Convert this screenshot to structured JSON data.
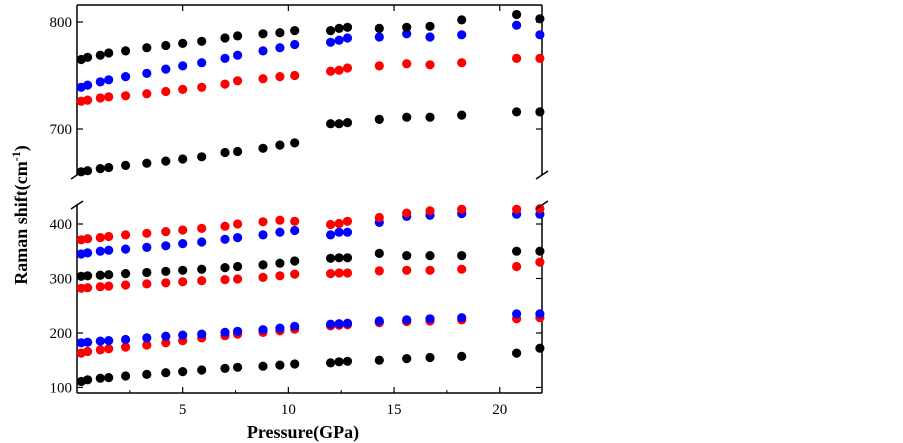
{
  "chart_data": {
    "type": "scatter",
    "title": "",
    "xlabel": "Pressure(GPa)",
    "ylabel_main": "Raman shift(cm",
    "ylabel_sup": "-1",
    "ylabel_close": ")",
    "xlim": [
      0,
      22
    ],
    "x_ticks": [
      5,
      10,
      15,
      20
    ],
    "y_axis_break": true,
    "y_lower_range": [
      100,
      430
    ],
    "y_upper_range": [
      650,
      810
    ],
    "y_ticks_lower": [
      100,
      200,
      300,
      400
    ],
    "y_ticks_upper": [
      700,
      800
    ],
    "grid": false,
    "legend": "none",
    "colors": {
      "black": "#000000",
      "blue": "#0000ff",
      "red": "#ff0000"
    },
    "series": [
      {
        "color": "black",
        "x": [
          0.2,
          0.5,
          1.1,
          1.5,
          2.3,
          3.3,
          4.2,
          5.0,
          5.9,
          7.0,
          7.6,
          8.8,
          9.6,
          10.3,
          12.0,
          12.4,
          12.8,
          14.3,
          15.6,
          16.7,
          18.2,
          20.8,
          21.9
        ],
        "y": [
          660,
          661,
          663,
          664,
          666,
          668,
          670,
          672,
          674,
          678,
          679,
          682,
          685,
          687,
          705,
          705,
          706,
          709,
          711,
          711,
          713,
          716,
          716
        ]
      },
      {
        "color": "red",
        "x": [
          0.2,
          0.5,
          1.1,
          1.5,
          2.3,
          3.3,
          4.2,
          5.0,
          5.9,
          7.0,
          7.6,
          8.8,
          9.6,
          10.3,
          12.0,
          12.4,
          12.8,
          14.3,
          15.6,
          16.7,
          18.2,
          20.8,
          21.9
        ],
        "y": [
          726,
          727,
          729,
          730,
          731,
          733,
          735,
          737,
          739,
          742,
          745,
          747,
          749,
          750,
          754,
          755,
          757,
          759,
          761,
          760,
          762,
          766,
          766
        ]
      },
      {
        "color": "blue",
        "x": [
          0.2,
          0.5,
          1.1,
          1.5,
          2.3,
          3.3,
          4.2,
          5.0,
          5.9,
          7.0,
          7.6,
          8.8,
          9.6,
          10.3,
          12.0,
          12.4,
          12.8,
          14.3,
          15.6,
          16.7,
          18.2,
          20.8,
          21.9
        ],
        "y": [
          739,
          741,
          744,
          746,
          749,
          752,
          756,
          759,
          762,
          766,
          769,
          773,
          776,
          779,
          781,
          783,
          785,
          786,
          789,
          786,
          788,
          797,
          788
        ]
      },
      {
        "color": "black",
        "x": [
          0.2,
          0.5,
          1.1,
          1.5,
          2.3,
          3.3,
          4.2,
          5.0,
          5.9,
          7.0,
          7.6,
          8.8,
          9.6,
          10.3,
          12.0,
          12.4,
          12.8,
          14.3,
          15.6,
          16.7,
          18.2,
          20.8,
          21.9
        ],
        "y": [
          765,
          767,
          769,
          771,
          773,
          776,
          778,
          780,
          782,
          785,
          787,
          789,
          790,
          792,
          792,
          794,
          795,
          794,
          795,
          796,
          802,
          807,
          803
        ]
      },
      {
        "color": "black",
        "x": [
          0.2,
          0.5,
          1.1,
          1.5,
          2.3,
          3.3,
          4.2,
          5.0,
          5.9,
          7.0,
          7.6,
          8.8,
          9.6,
          10.3,
          12.0,
          12.4,
          12.8,
          14.3,
          15.6,
          16.7,
          18.2,
          20.8,
          21.9
        ],
        "y": [
          111,
          114,
          117,
          118,
          121,
          124,
          127,
          129,
          132,
          135,
          137,
          139,
          141,
          143,
          145,
          147,
          148,
          150,
          153,
          155,
          157,
          163,
          172
        ]
      },
      {
        "color": "red",
        "x": [
          0.2,
          0.5,
          1.1,
          1.5,
          2.3,
          3.3,
          4.2,
          5.0,
          5.9,
          7.0,
          7.6,
          8.8,
          9.6,
          10.3,
          12.0,
          12.4,
          12.8,
          14.3,
          15.6,
          16.7,
          18.2,
          20.8,
          21.9
        ],
        "y": [
          163,
          166,
          169,
          171,
          174,
          178,
          182,
          186,
          191,
          195,
          198,
          201,
          204,
          207,
          213,
          214,
          215,
          219,
          221,
          222,
          224,
          226,
          228
        ]
      },
      {
        "color": "blue",
        "x": [
          0.2,
          0.5,
          1.1,
          1.5,
          2.3,
          3.3,
          4.2,
          5.0,
          5.9,
          7.0,
          7.6,
          8.8,
          9.6,
          10.3,
          12.0,
          12.4,
          12.8,
          14.3,
          15.6,
          16.7,
          18.2,
          20.8,
          21.9
        ],
        "y": [
          182,
          183,
          185,
          186,
          188,
          191,
          194,
          196,
          198,
          201,
          203,
          206,
          209,
          212,
          216,
          217,
          218,
          222,
          224,
          226,
          228,
          235,
          235
        ]
      },
      {
        "color": "red",
        "x": [
          0.2,
          0.5,
          1.1,
          1.5,
          2.3,
          3.3,
          4.2,
          5.0,
          5.9,
          7.0,
          7.6,
          8.8,
          9.6,
          10.3,
          12.0,
          12.4,
          12.8,
          14.3,
          15.6,
          16.7,
          18.2,
          20.8,
          21.9
        ],
        "y": [
          282,
          283,
          285,
          286,
          288,
          290,
          292,
          294,
          296,
          298,
          299,
          302,
          305,
          308,
          309,
          310,
          310,
          314,
          315,
          315,
          317,
          322,
          330
        ]
      },
      {
        "color": "black",
        "x": [
          0.2,
          0.5,
          1.1,
          1.5,
          2.3,
          3.3,
          4.2,
          5.0,
          5.9,
          7.0,
          7.6,
          8.8,
          9.6,
          10.3,
          12.0,
          12.4,
          12.8,
          14.3,
          15.6,
          16.7,
          18.2,
          20.8,
          21.9
        ],
        "y": [
          304,
          305,
          306,
          307,
          309,
          311,
          313,
          315,
          317,
          320,
          322,
          325,
          328,
          332,
          337,
          338,
          338,
          346,
          342,
          342,
          342,
          350,
          350
        ]
      },
      {
        "color": "blue",
        "x": [
          0.2,
          0.5,
          1.1,
          1.5,
          2.3,
          3.3,
          4.2,
          5.0,
          5.9,
          7.0,
          7.6,
          8.8,
          9.6,
          10.3,
          12.0,
          12.4,
          12.8,
          14.3,
          15.6,
          16.7,
          18.2,
          20.8,
          21.9
        ],
        "y": [
          345,
          347,
          350,
          352,
          354,
          357,
          360,
          364,
          367,
          372,
          375,
          380,
          385,
          388,
          380,
          385,
          385,
          403,
          414,
          416,
          419,
          418,
          418
        ]
      },
      {
        "color": "red",
        "x": [
          0.2,
          0.5,
          1.1,
          1.5,
          2.3,
          3.3,
          4.2,
          5.0,
          5.9,
          7.0,
          7.6,
          8.8,
          9.6,
          10.3,
          12.0,
          12.4,
          12.8,
          14.3,
          15.6,
          16.7,
          18.2,
          20.8,
          21.9
        ],
        "y": [
          371,
          373,
          375,
          377,
          380,
          383,
          386,
          389,
          392,
          396,
          400,
          404,
          407,
          405,
          399,
          401,
          405,
          412,
          420,
          424,
          427,
          427,
          428
        ]
      }
    ]
  }
}
